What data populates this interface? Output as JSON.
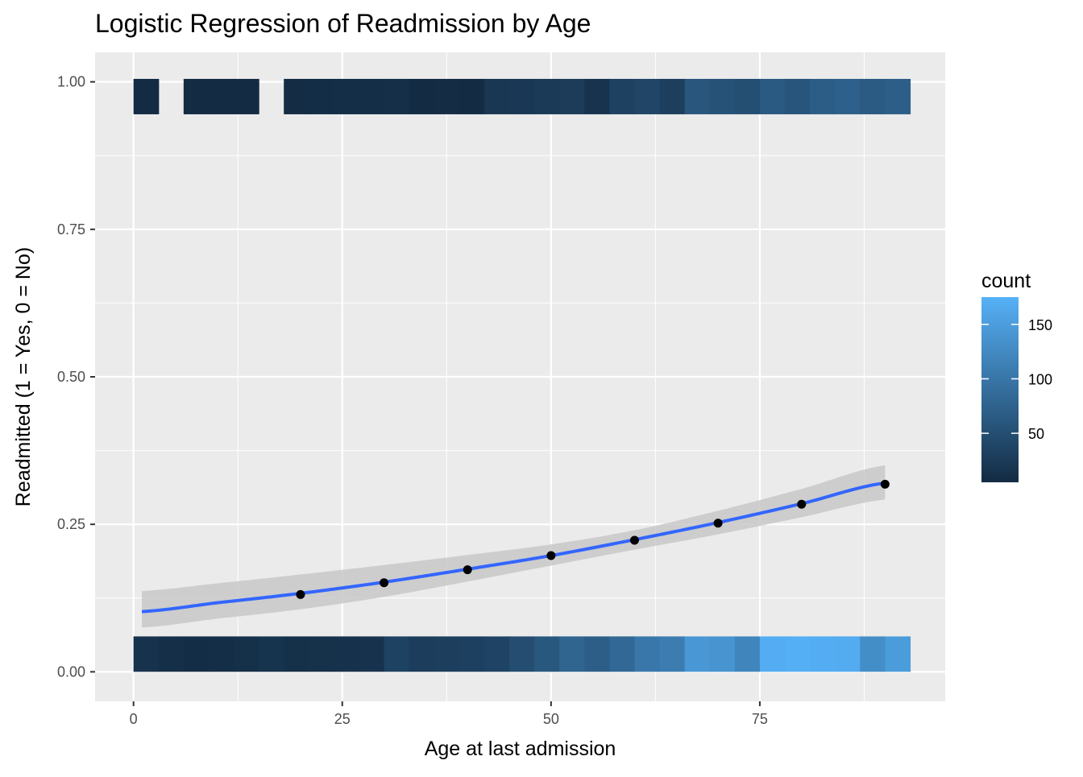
{
  "chart_data": {
    "type": "scatter",
    "title": "Logistic Regression of Readmission by Age",
    "xlabel": "Age at last admission",
    "ylabel": "Readmitted (1 = Yes, 0 = No)",
    "xlim": [
      -4.6,
      97.2
    ],
    "ylim": [
      -0.05,
      1.05
    ],
    "x_ticks": [
      {
        "value": 0,
        "label": "0"
      },
      {
        "value": 25,
        "label": "25"
      },
      {
        "value": 50,
        "label": "50"
      },
      {
        "value": 75,
        "label": "75"
      }
    ],
    "y_ticks": [
      {
        "value": 0,
        "label": "0.00"
      },
      {
        "value": 0.25,
        "label": "0.25"
      },
      {
        "value": 0.5,
        "label": "0.50"
      },
      {
        "value": 0.75,
        "label": "0.75"
      },
      {
        "value": 1,
        "label": "1.00"
      }
    ],
    "grid": true,
    "legend": {
      "title": "count",
      "placement": "right",
      "min": 5,
      "max": 175,
      "color_low": "#132B43",
      "color_high": "#56B1F7",
      "ticks": [
        {
          "value": 50,
          "label": "50"
        },
        {
          "value": 100,
          "label": "100"
        },
        {
          "value": 150,
          "label": "150"
        }
      ]
    },
    "heat_strips": {
      "bin_width": 3,
      "strip_half_height": 0.03,
      "readmitted_1": {
        "y": 0.975,
        "bins": [
          {
            "x": 1.5,
            "count": 5
          },
          {
            "x": 7.5,
            "count": 5
          },
          {
            "x": 10.5,
            "count": 5
          },
          {
            "x": 13.5,
            "count": 5
          },
          {
            "x": 19.5,
            "count": 7
          },
          {
            "x": 22.5,
            "count": 8
          },
          {
            "x": 25.5,
            "count": 9
          },
          {
            "x": 28.5,
            "count": 9
          },
          {
            "x": 31.5,
            "count": 10
          },
          {
            "x": 34.5,
            "count": 6
          },
          {
            "x": 37.5,
            "count": 7
          },
          {
            "x": 40.5,
            "count": 6
          },
          {
            "x": 43.5,
            "count": 20
          },
          {
            "x": 46.5,
            "count": 22
          },
          {
            "x": 49.5,
            "count": 24
          },
          {
            "x": 52.5,
            "count": 27
          },
          {
            "x": 55.5,
            "count": 15
          },
          {
            "x": 58.5,
            "count": 33
          },
          {
            "x": 61.5,
            "count": 38
          },
          {
            "x": 64.5,
            "count": 30
          },
          {
            "x": 67.5,
            "count": 60
          },
          {
            "x": 70.5,
            "count": 55
          },
          {
            "x": 73.5,
            "count": 50
          },
          {
            "x": 76.5,
            "count": 64
          },
          {
            "x": 79.5,
            "count": 58
          },
          {
            "x": 82.5,
            "count": 68
          },
          {
            "x": 85.5,
            "count": 72
          },
          {
            "x": 88.5,
            "count": 65
          },
          {
            "x": 91.5,
            "count": 70
          }
        ]
      },
      "readmitted_0": {
        "y": 0.03,
        "bins": [
          {
            "x": 1.5,
            "count": 14
          },
          {
            "x": 4.5,
            "count": 10
          },
          {
            "x": 7.5,
            "count": 8
          },
          {
            "x": 10.5,
            "count": 9
          },
          {
            "x": 13.5,
            "count": 11
          },
          {
            "x": 16.5,
            "count": 16
          },
          {
            "x": 19.5,
            "count": 11
          },
          {
            "x": 22.5,
            "count": 12
          },
          {
            "x": 25.5,
            "count": 13
          },
          {
            "x": 28.5,
            "count": 14
          },
          {
            "x": 31.5,
            "count": 34
          },
          {
            "x": 34.5,
            "count": 28
          },
          {
            "x": 37.5,
            "count": 30
          },
          {
            "x": 40.5,
            "count": 32
          },
          {
            "x": 43.5,
            "count": 36
          },
          {
            "x": 46.5,
            "count": 48
          },
          {
            "x": 49.5,
            "count": 62
          },
          {
            "x": 52.5,
            "count": 78
          },
          {
            "x": 55.5,
            "count": 70
          },
          {
            "x": 58.5,
            "count": 82
          },
          {
            "x": 61.5,
            "count": 102
          },
          {
            "x": 64.5,
            "count": 108
          },
          {
            "x": 67.5,
            "count": 142
          },
          {
            "x": 70.5,
            "count": 138
          },
          {
            "x": 73.5,
            "count": 120
          },
          {
            "x": 76.5,
            "count": 170
          },
          {
            "x": 79.5,
            "count": 172
          },
          {
            "x": 82.5,
            "count": 170
          },
          {
            "x": 85.5,
            "count": 168
          },
          {
            "x": 88.5,
            "count": 130
          },
          {
            "x": 91.5,
            "count": 148
          }
        ]
      }
    },
    "fit": {
      "color": "#3366FF",
      "ribbon_color": "#c8c8c8",
      "points": [
        {
          "x": 1,
          "y": 0.102,
          "lower": 0.075,
          "upper": 0.137
        },
        {
          "x": 10,
          "y": 0.117,
          "lower": 0.09,
          "upper": 0.15
        },
        {
          "x": 20,
          "y": 0.133,
          "lower": 0.106,
          "upper": 0.165
        },
        {
          "x": 30,
          "y": 0.152,
          "lower": 0.127,
          "upper": 0.181
        },
        {
          "x": 40,
          "y": 0.174,
          "lower": 0.153,
          "upper": 0.198
        },
        {
          "x": 50,
          "y": 0.197,
          "lower": 0.18,
          "upper": 0.216
        },
        {
          "x": 60,
          "y": 0.224,
          "lower": 0.207,
          "upper": 0.24
        },
        {
          "x": 70,
          "y": 0.253,
          "lower": 0.233,
          "upper": 0.273
        },
        {
          "x": 80,
          "y": 0.285,
          "lower": 0.262,
          "upper": 0.31
        },
        {
          "x": 90,
          "y": 0.32,
          "lower": 0.292,
          "upper": 0.35
        }
      ]
    },
    "series": [
      {
        "points": [
          {
            "x": 20,
            "y": 0.131
          },
          {
            "x": 30,
            "y": 0.151
          },
          {
            "x": 40,
            "y": 0.173
          },
          {
            "x": 50,
            "y": 0.197
          },
          {
            "x": 60,
            "y": 0.223
          },
          {
            "x": 70,
            "y": 0.252
          },
          {
            "x": 80,
            "y": 0.284
          },
          {
            "x": 90,
            "y": 0.318
          }
        ]
      }
    ]
  }
}
